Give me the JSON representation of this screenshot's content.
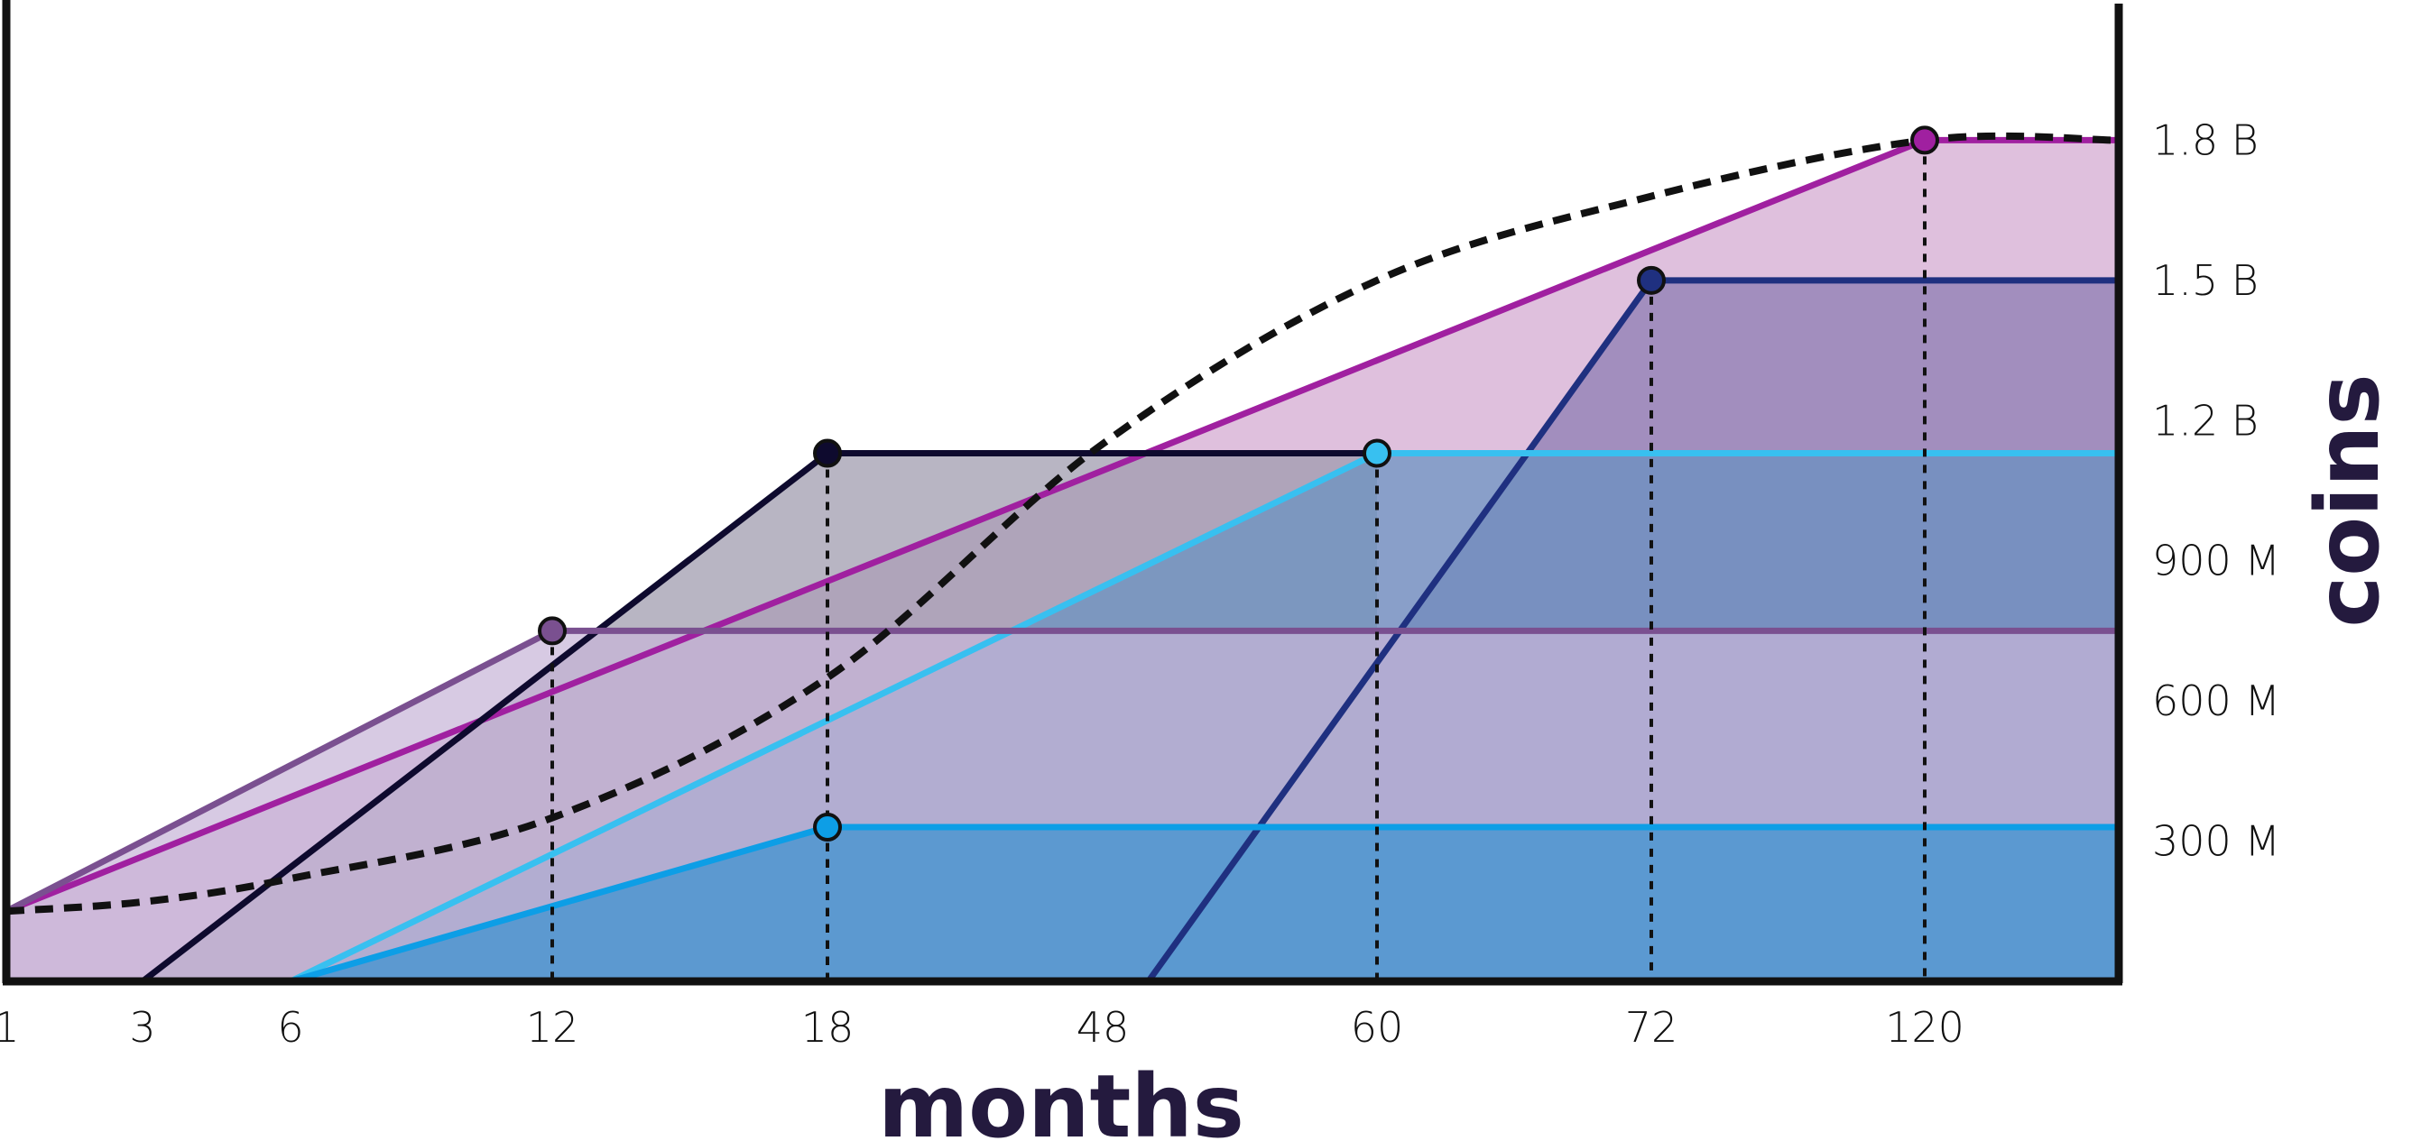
{
  "chart_data": {
    "type": "area",
    "title": "",
    "xlabel": "months",
    "ylabel": "coins",
    "x_ticks": [
      "1",
      "3",
      "6",
      "12",
      "18",
      "48",
      "60",
      "72",
      "120"
    ],
    "y_ticks": [
      "300 M",
      "600 M",
      "900 M",
      "1.2 B",
      "1.5 B",
      "1.8 B"
    ],
    "ylim": [
      0,
      2100000000
    ],
    "grid": false,
    "legend": "none",
    "series": [
      {
        "color": "#a020a0",
        "fill": "#d3a8d0",
        "points": [
          [
            1,
            150000000
          ],
          [
            120,
            1800000000
          ],
          [
            130,
            1800000000
          ]
        ],
        "marker_index": 1
      },
      {
        "color": "#1f3080",
        "fill": "#8a7ab2",
        "points": [
          [
            50,
            0
          ],
          [
            72,
            1500000000
          ],
          [
            130,
            1500000000
          ]
        ],
        "marker_index": 1
      },
      {
        "color": "#0e0a2e",
        "fill": "#9c98ac",
        "points": [
          [
            3,
            0
          ],
          [
            18,
            1130000000
          ],
          [
            60,
            1130000000
          ]
        ],
        "marker_index": 1
      },
      {
        "color": "#38c0f0",
        "fill": "#6892c0",
        "points": [
          [
            6,
            0
          ],
          [
            60,
            1130000000
          ],
          [
            130,
            1130000000
          ]
        ],
        "marker_index": 1
      },
      {
        "color": "#7a5090",
        "fill": "#c8b6d8",
        "points": [
          [
            1,
            150000000
          ],
          [
            12,
            750000000
          ],
          [
            130,
            750000000
          ]
        ],
        "marker_index": 1
      },
      {
        "color": "#0d9ee6",
        "fill": "#3a92d0",
        "points": [
          [
            6,
            0
          ],
          [
            18,
            330000000
          ],
          [
            130,
            330000000
          ]
        ],
        "marker_index": 1
      }
    ],
    "dashed_curve": {
      "color": "#111111",
      "points": [
        [
          1,
          150000000
        ],
        [
          3,
          170000000
        ],
        [
          6,
          220000000
        ],
        [
          12,
          350000000
        ],
        [
          18,
          650000000
        ],
        [
          48,
          1150000000
        ],
        [
          60,
          1500000000
        ],
        [
          72,
          1680000000
        ],
        [
          120,
          1800000000
        ],
        [
          130,
          1800000000
        ]
      ]
    }
  }
}
